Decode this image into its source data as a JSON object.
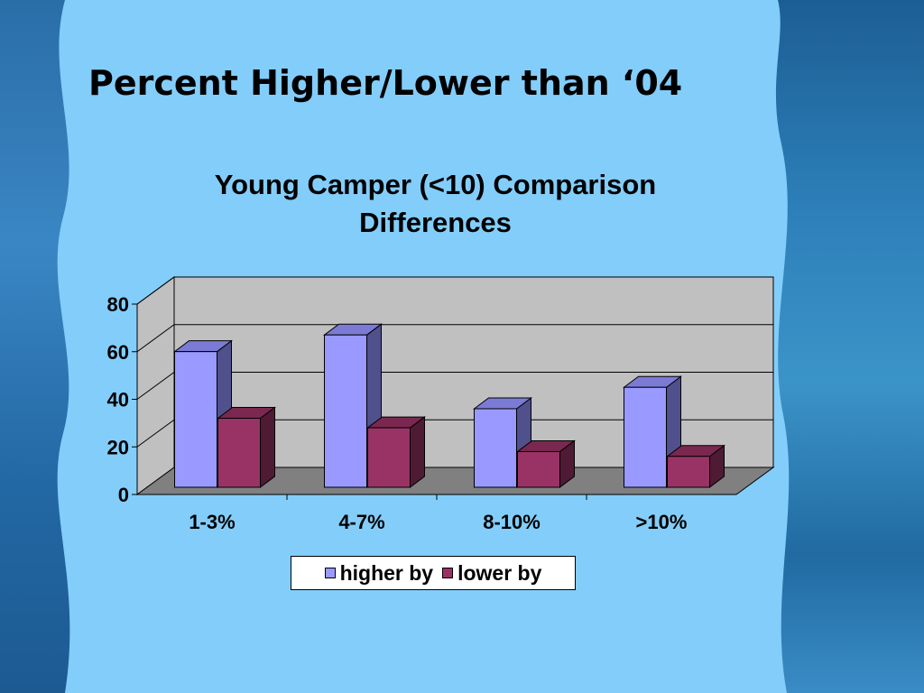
{
  "slide": {
    "title": "Percent Higher/Lower than ‘04"
  },
  "chart_data": {
    "type": "bar",
    "title": "Young Camper (<10) Comparison Differences",
    "title_lines": [
      "Young Camper (<10) Comparison",
      "Differences"
    ],
    "categories": [
      "1-3%",
      "4-7%",
      "8-10%",
      ">10%"
    ],
    "series": [
      {
        "name": "higher by",
        "values": [
          57,
          64,
          33,
          42
        ],
        "color": "#9999ff",
        "side_color": "#50508c",
        "top_color": "#7b7bd6"
      },
      {
        "name": "lower by",
        "values": [
          29,
          25,
          15,
          13
        ],
        "color": "#993366",
        "side_color": "#4f1a34",
        "top_color": "#7a284f"
      }
    ],
    "ylim": [
      0,
      80
    ],
    "yticks": [
      0,
      20,
      40,
      60,
      80
    ],
    "grid": true,
    "three_d": true,
    "legend_position": "bottom",
    "xlabel": "",
    "ylabel": "",
    "colors": {
      "wall": "#c0c0c0",
      "floor": "#808080",
      "page_bg": "#83cdfa"
    }
  }
}
